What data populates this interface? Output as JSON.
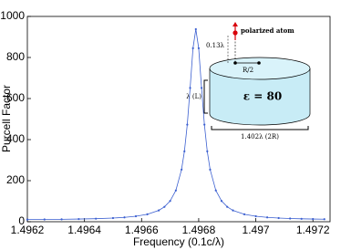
{
  "chart_data": {
    "type": "line",
    "x_label": "Frequency (0.1c/λ)",
    "y_label": "Purcell Factor",
    "x": [
      1.4962,
      1.49626,
      1.49632,
      1.49638,
      1.49644,
      1.4965,
      1.49654,
      1.49658,
      1.49662,
      1.49666,
      1.49668,
      1.4967,
      1.49672,
      1.49674,
      1.49675,
      1.49676,
      1.49677,
      1.49678,
      1.49679,
      1.4968,
      1.49681,
      1.49682,
      1.49683,
      1.49684,
      1.49686,
      1.49688,
      1.4969,
      1.49692,
      1.49696,
      1.497,
      1.49704,
      1.49708,
      1.49712,
      1.49716,
      1.4972,
      1.49724
    ],
    "series": [
      {
        "color": "#3b5fd0",
        "values": [
          10.4,
          11.0,
          11.8,
          13.0,
          14.8,
          17.9,
          21.0,
          26.6,
          36.1,
          55.0,
          72.4,
          101,
          152.3,
          254,
          342.8,
          473,
          651.8,
          845,
          938,
          845,
          651.8,
          473,
          342.8,
          254,
          152.3,
          101,
          72.4,
          55.0,
          36.1,
          26.6,
          21.0,
          17.9,
          15.6,
          14.1,
          13.0,
          12.1
        ]
      }
    ],
    "xlim": [
      1.4962,
      1.49726
    ],
    "ylim": [
      0,
      1000
    ],
    "xticks": [
      1.4962,
      1.4964,
      1.4966,
      1.4968,
      1.497,
      1.4972
    ],
    "yticks": [
      0,
      200,
      400,
      600,
      800,
      1000
    ],
    "annotations": [
      "polarized atom",
      "0.13λ",
      "R/2",
      "λ (L)",
      "ε = 80",
      "1.402λ (2R)"
    ]
  }
}
